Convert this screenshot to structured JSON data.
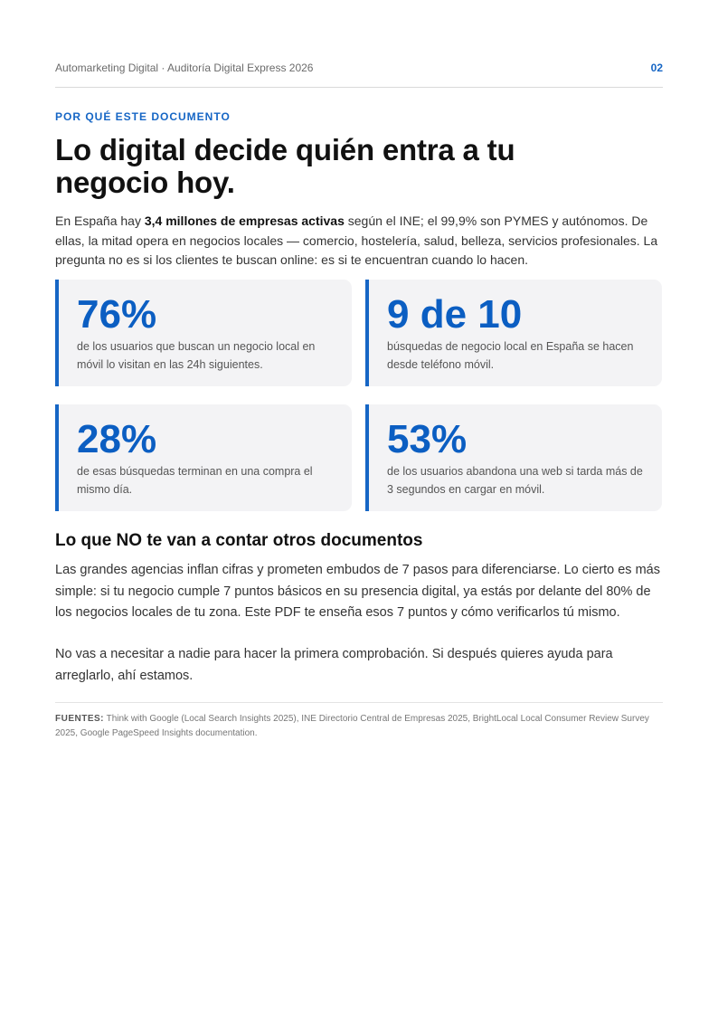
{
  "header": {
    "title": "Automarketing Digital · Auditoría Digital Express 2026",
    "page_number": "02"
  },
  "section": {
    "eyebrow": "POR QUÉ ESTE DOCUMENTO",
    "headline": "Lo digital decide quién entra a tu negocio hoy.",
    "intro": {
      "before": "En España hay ",
      "highlight": "3,4 millones de empresas activas",
      "after": " según el INE; el 99,9% son PYMES y autónomos. De ellas, la mitad opera en negocios locales — comercio, hostelería, salud, belleza, servicios profesionales. La pregunta no es si los clientes te buscan online: es si te encuentran cuando lo hacen."
    }
  },
  "stats": [
    {
      "value": "76%",
      "description": "de los usuarios que buscan un negocio local en móvil lo visitan en las 24h siguientes."
    },
    {
      "value": "9 de 10",
      "description": "búsquedas de negocio local en España se hacen desde teléfono móvil."
    },
    {
      "value": "28%",
      "description": "de esas búsquedas terminan en una compra el mismo día."
    },
    {
      "value": "53%",
      "description": "de los usuarios abandona una web si tarda más de 3 segundos en cargar en móvil."
    }
  ],
  "content": {
    "subheading": "Lo que NO te van a contar otros documentos",
    "paragraph_1": "Las grandes agencias inflan cifras y prometen embudos de 7 pasos para diferenciarse. Lo cierto es más simple: si tu negocio cumple 7 puntos básicos en su presencia digital, ya estás por delante del 80% de los negocios locales de tu zona. Este PDF te enseña esos 7 puntos y cómo verificarlos tú mismo.",
    "paragraph_2": "No vas a necesitar a nadie para hacer la primera comprobación. Si después quieres ayuda para arreglarlo, ahí estamos."
  },
  "sources": {
    "label": "FUENTES:",
    "text": " Think with Google (Local Search Insights 2025), INE Directorio Central de Empresas 2025, BrightLocal Local Consumer Review Survey 2025, Google PageSpeed Insights documentation."
  },
  "colors": {
    "accent": "#1666c5",
    "stat_value": "#0b5ec2",
    "card_background": "#f3f3f5",
    "headline": "#111111",
    "body": "#333333",
    "muted": "#777777"
  }
}
